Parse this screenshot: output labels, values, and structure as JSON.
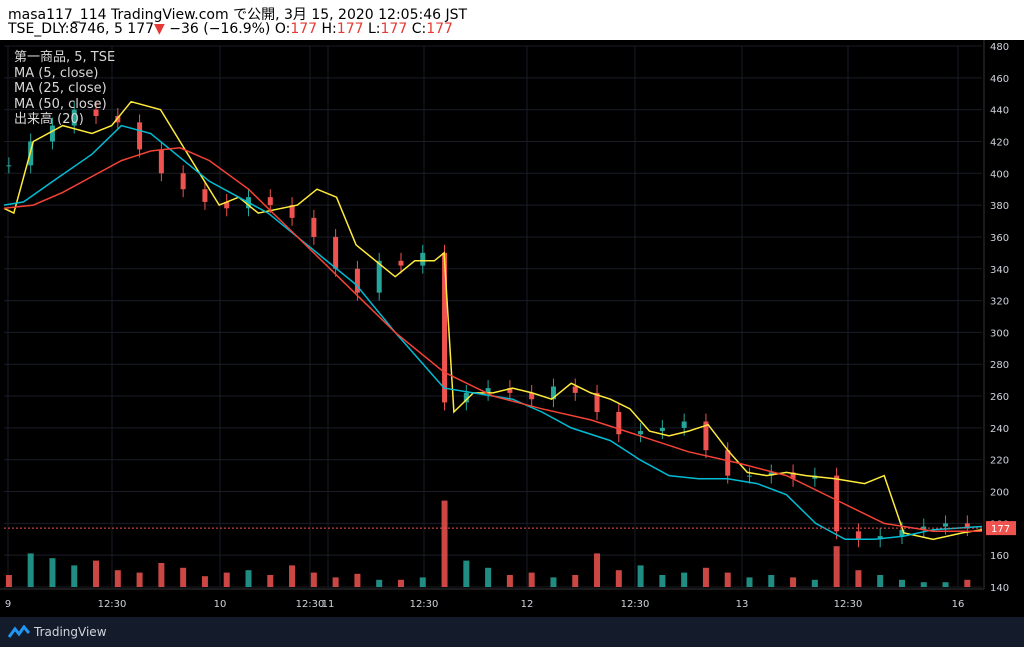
{
  "header": {
    "line1": "masa117_114 TradingView.com で公開, 3月 15, 2020 12:05:46 JST",
    "symbol": "TSE_DLY:8746, 5 177",
    "change": "−36 (−16.9%)",
    "o_label": "O:",
    "o": "177",
    "h_label": "H:",
    "h": "177",
    "l_label": "L:",
    "l": "177",
    "c_label": "C:",
    "c": "177"
  },
  "legend": {
    "title": "第一商品, 5, TSE",
    "ma5": "MA (5, close)",
    "ma25": "MA (25, close)",
    "ma50": "MA (50, close)",
    "volume": "出来高 (20)"
  },
  "footer": {
    "brand": "TradingView"
  },
  "chart_data": {
    "type": "line",
    "ylim": [
      140,
      480
    ],
    "yticks": [
      "480",
      "460",
      "440",
      "420",
      "400",
      "380",
      "360",
      "340",
      "320",
      "300",
      "280",
      "260",
      "240",
      "220",
      "200",
      "180",
      "160",
      "140"
    ],
    "xticks": [
      "9",
      "12:30",
      "10",
      "12:30",
      "11",
      "12:30",
      "12",
      "12:30",
      "13",
      "12:30",
      "16"
    ],
    "last_price": "177",
    "colors": {
      "ma5": "#ffeb3b",
      "ma25": "#00bcd4",
      "ma50": "#f44336",
      "up": "#26a69a",
      "down": "#ef5350"
    },
    "series": [
      {
        "name": "MA (5, close)",
        "x": [
          0,
          1,
          3,
          6,
          9,
          11,
          13,
          16,
          18,
          20,
          22,
          24,
          26,
          30,
          32,
          34,
          36,
          38,
          40,
          42,
          44,
          45,
          46,
          48,
          50,
          52,
          54,
          56,
          58,
          60,
          62,
          64,
          66,
          68,
          70,
          72,
          74,
          76,
          78,
          80,
          82,
          85,
          88,
          90,
          92,
          95,
          98,
          100
        ],
        "y": [
          378,
          375,
          420,
          430,
          425,
          430,
          445,
          440,
          420,
          400,
          380,
          385,
          375,
          380,
          390,
          385,
          355,
          345,
          335,
          345,
          345,
          350,
          250,
          262,
          262,
          265,
          262,
          258,
          268,
          262,
          258,
          252,
          238,
          235,
          238,
          242,
          226,
          212,
          210,
          212,
          210,
          208,
          205,
          210,
          174,
          170,
          174,
          176
        ]
      },
      {
        "name": "MA (25, close)",
        "x": [
          0,
          2,
          5,
          9,
          12,
          15,
          18,
          21,
          24,
          27,
          30,
          33,
          36,
          40,
          45,
          48,
          52,
          55,
          58,
          62,
          65,
          68,
          71,
          74,
          77,
          80,
          83,
          86,
          89,
          92,
          95,
          100
        ],
        "y": [
          380,
          382,
          395,
          412,
          430,
          425,
          410,
          395,
          385,
          375,
          360,
          345,
          330,
          300,
          265,
          262,
          258,
          250,
          240,
          232,
          220,
          210,
          208,
          208,
          205,
          198,
          180,
          170,
          170,
          172,
          176,
          178
        ]
      },
      {
        "name": "MA (50, close)",
        "x": [
          0,
          3,
          6,
          9,
          12,
          15,
          18,
          21,
          25,
          30,
          35,
          40,
          45,
          50,
          55,
          60,
          65,
          70,
          75,
          80,
          85,
          90,
          95,
          100
        ],
        "y": [
          378,
          380,
          388,
          398,
          408,
          414,
          416,
          408,
          390,
          360,
          330,
          300,
          275,
          260,
          252,
          245,
          235,
          225,
          218,
          210,
          195,
          180,
          175,
          175
        ]
      }
    ],
    "candles_approx_close": [
      405,
      420,
      430,
      440,
      436,
      432,
      415,
      400,
      390,
      382,
      378,
      385,
      380,
      372,
      360,
      340,
      325,
      345,
      342,
      350,
      256,
      262,
      265,
      262,
      258,
      266,
      262,
      250,
      236,
      238,
      240,
      244,
      226,
      210,
      210,
      212,
      208,
      210,
      175,
      170,
      172,
      176,
      178,
      180,
      177
    ],
    "volume_approx": [
      10,
      28,
      24,
      18,
      22,
      14,
      12,
      20,
      16,
      9,
      12,
      14,
      10,
      18,
      12,
      8,
      11,
      6,
      6,
      8,
      72,
      22,
      16,
      10,
      12,
      8,
      10,
      28,
      14,
      18,
      10,
      12,
      16,
      12,
      8,
      10,
      8,
      6,
      34,
      14,
      10,
      6,
      4,
      4,
      6
    ]
  }
}
